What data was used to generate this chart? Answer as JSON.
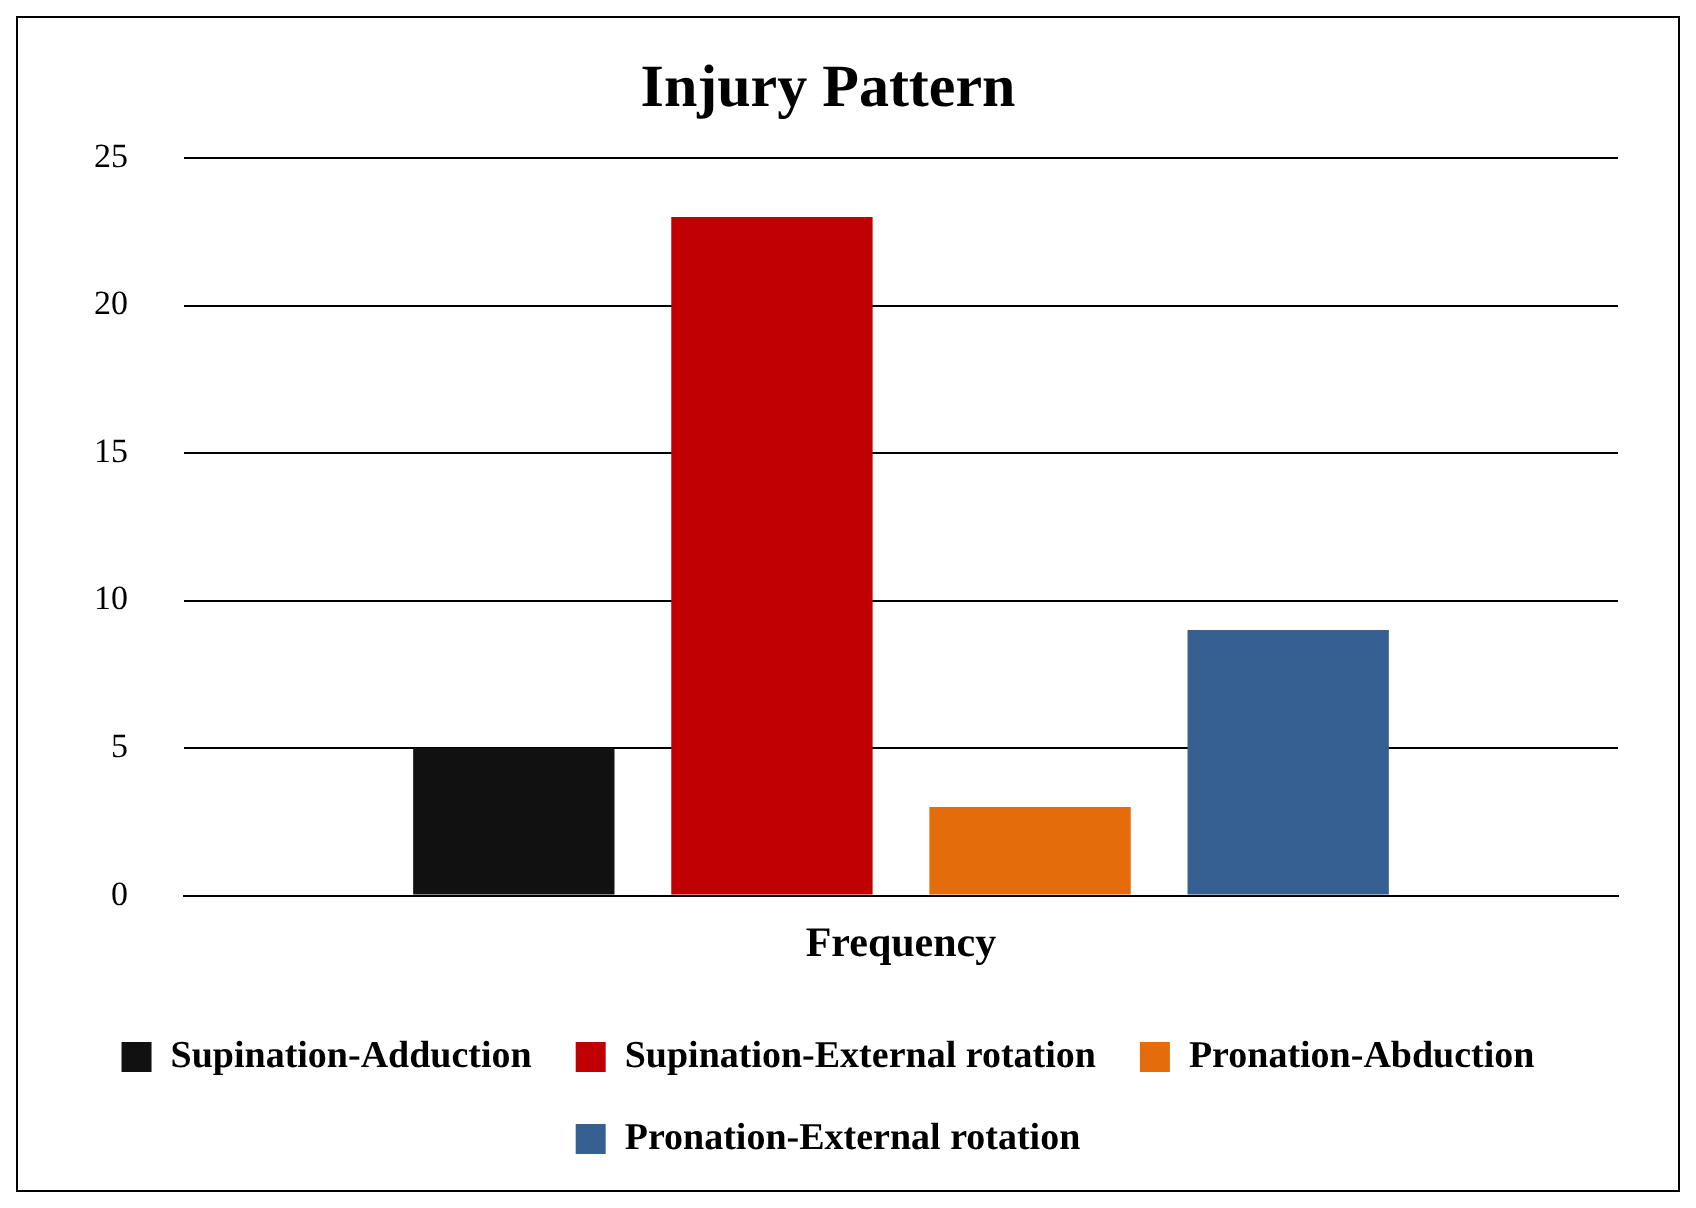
{
  "chart_data": {
    "type": "bar",
    "title": "Injury Pattern",
    "categories": [
      "Frequency"
    ],
    "series": [
      {
        "name": "Supination-Adduction",
        "color": "#111111",
        "values": [
          5
        ]
      },
      {
        "name": "Supination-External rotation",
        "color": "#c00000",
        "values": [
          23
        ]
      },
      {
        "name": "Pronation-Abduction",
        "color": "#e46c0a",
        "values": [
          3
        ]
      },
      {
        "name": "Pronation-External rotation",
        "color": "#376092",
        "values": [
          9
        ]
      }
    ],
    "ylim": [
      0,
      25
    ],
    "yticks": [
      0,
      5,
      10,
      15,
      20,
      25
    ],
    "grid": "y",
    "legend": "bottom"
  }
}
